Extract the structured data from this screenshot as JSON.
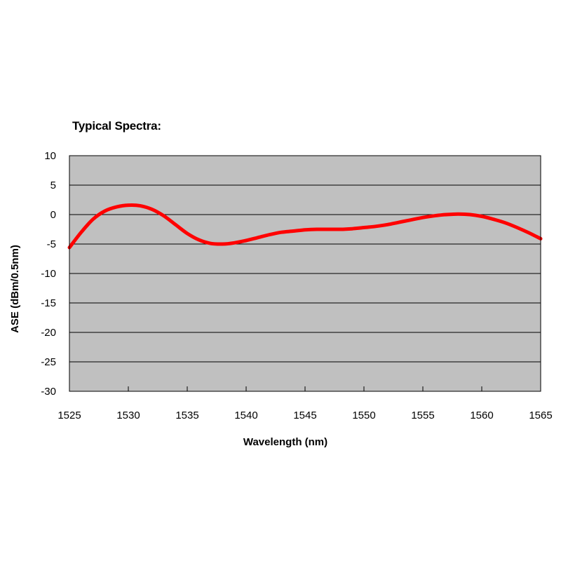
{
  "chart_data": {
    "type": "line",
    "title": "Typical Spectra:",
    "xlabel": "Wavelength (nm)",
    "ylabel": "ASE (dBm/0.5nm)",
    "xlim": [
      1525,
      1565
    ],
    "ylim": [
      -30,
      10
    ],
    "x_ticks": [
      "1525",
      "1530",
      "1535",
      "1540",
      "1545",
      "1550",
      "1555",
      "1560",
      "1565"
    ],
    "y_ticks": [
      "10",
      "5",
      "0",
      "-5",
      "-10",
      "-15",
      "-20",
      "-25",
      "-30"
    ],
    "grid": "horizontal",
    "legend": "none",
    "colors": {
      "plot_bg": "#c0c0c0",
      "line": "#ff0000",
      "grid": "#000000"
    },
    "series": [
      {
        "x": [
          1525,
          1526,
          1527,
          1528,
          1529,
          1530,
          1531,
          1532,
          1533,
          1534,
          1535,
          1536,
          1537,
          1538,
          1539,
          1540,
          1541,
          1542,
          1543,
          1544,
          1545,
          1546,
          1547,
          1548,
          1549,
          1550,
          1551,
          1552,
          1553,
          1554,
          1555,
          1556,
          1557,
          1558,
          1559,
          1560,
          1561,
          1562,
          1563,
          1564,
          1565
        ],
        "values": [
          -5.6,
          -3.0,
          -0.8,
          0.6,
          1.3,
          1.6,
          1.5,
          0.9,
          -0.2,
          -1.7,
          -3.2,
          -4.3,
          -4.9,
          -5.0,
          -4.8,
          -4.4,
          -3.9,
          -3.4,
          -3.0,
          -2.8,
          -2.6,
          -2.5,
          -2.5,
          -2.5,
          -2.4,
          -2.2,
          -2.0,
          -1.7,
          -1.3,
          -0.9,
          -0.5,
          -0.2,
          0.0,
          0.1,
          0.0,
          -0.3,
          -0.8,
          -1.4,
          -2.2,
          -3.1,
          -4.1
        ]
      }
    ]
  }
}
